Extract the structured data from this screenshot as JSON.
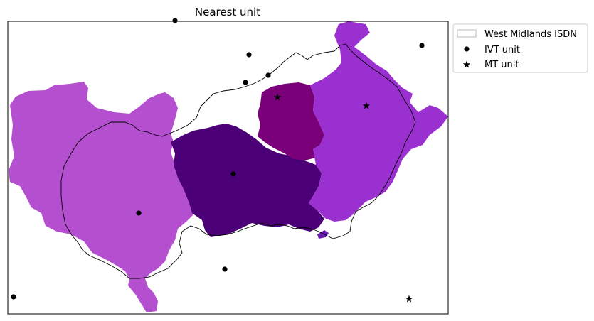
{
  "chart_data": {
    "type": "map",
    "title": "Nearest unit",
    "legend": {
      "placement": "outside top-right",
      "entries": [
        {
          "label": "West Midlands ISDN",
          "symbol": "outlined-patch"
        },
        {
          "label": "IVT unit",
          "symbol": "circle-marker"
        },
        {
          "label": "MT unit",
          "symbol": "star-marker"
        }
      ]
    },
    "regions": [
      {
        "role": "west catchment",
        "color": "#b44fd0"
      },
      {
        "role": "central catchment",
        "color": "#4b0078"
      },
      {
        "role": "north-central catchment",
        "color": "#7a007a"
      },
      {
        "role": "east catchment",
        "color": "#9a30cf"
      }
    ],
    "units": [
      {
        "kind": "IVT unit",
        "count": 9
      },
      {
        "kind": "MT unit",
        "count": 3
      }
    ],
    "colors": {
      "boundary": "#000000",
      "marker": "#000000",
      "frame": "#000000"
    }
  }
}
